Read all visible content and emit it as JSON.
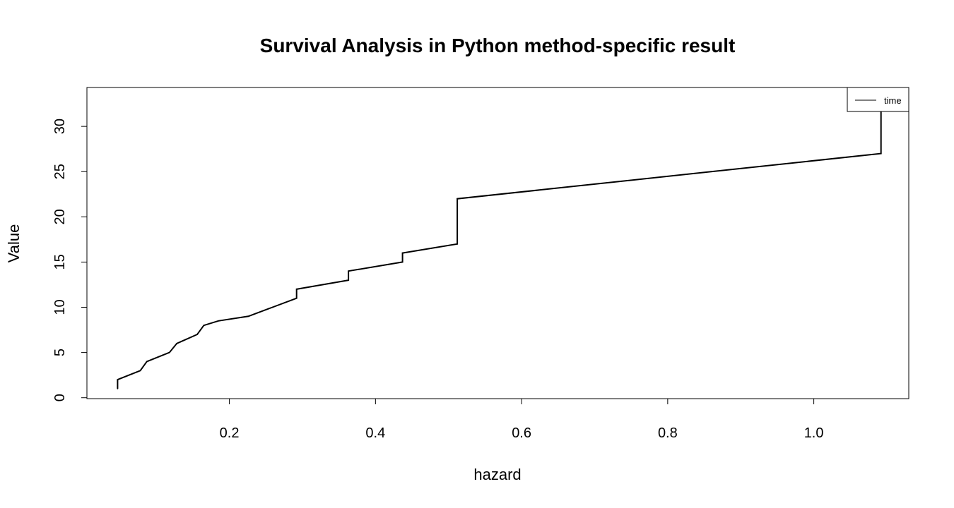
{
  "chart_data": {
    "type": "line",
    "title": "Survival Analysis in Python method-specific result",
    "xlabel": "hazard",
    "ylabel": "Value",
    "xlim": [
      0.005,
      1.13
    ],
    "ylim": [
      -0.1,
      34.3
    ],
    "xticks": [
      0.2,
      0.4,
      0.6,
      0.8,
      1.0
    ],
    "xtick_labels": [
      "0.2",
      "0.4",
      "0.6",
      "0.8",
      "1.0"
    ],
    "yticks": [
      0,
      5,
      10,
      15,
      20,
      25,
      30
    ],
    "ytick_labels": [
      "0",
      "5",
      "10",
      "15",
      "20",
      "25",
      "30"
    ],
    "grid": false,
    "legend_position": "top-right",
    "series": [
      {
        "name": "time",
        "color": "#000000",
        "x": [
          0.047,
          0.047,
          0.078,
          0.087,
          0.118,
          0.128,
          0.156,
          0.165,
          0.185,
          0.226,
          0.259,
          0.292,
          0.292,
          0.363,
          0.363,
          0.437,
          0.437,
          0.512,
          0.512,
          1.092,
          1.092
        ],
        "y": [
          1,
          2,
          3,
          4,
          5,
          6,
          7,
          8,
          8.5,
          9,
          10,
          11,
          12,
          13,
          14,
          15,
          16,
          17,
          22,
          27,
          33
        ]
      }
    ]
  }
}
